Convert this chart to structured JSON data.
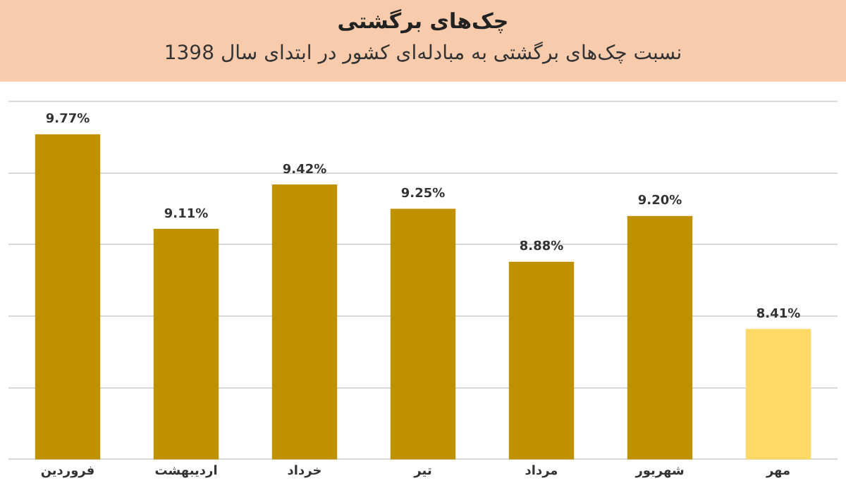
{
  "chart_data": {
    "type": "bar",
    "title": "چک‌های برگشتی",
    "subtitle": "نسبت چک‌های برگشتی به مبادله‌ای کشور در ابتدای سال 1398",
    "categories": [
      "فروردین",
      "اردیبهشت",
      "خرداد",
      "تیر",
      "مرداد",
      "شهریور",
      "مهر"
    ],
    "values": [
      9.77,
      9.11,
      9.42,
      9.25,
      8.88,
      9.2,
      8.41
    ],
    "colors": [
      "#bf9000",
      "#bf9000",
      "#bf9000",
      "#bf9000",
      "#bf9000",
      "#bf9000",
      "#ffd966"
    ],
    "value_labels": [
      "9.77%",
      "9.11%",
      "9.42%",
      "9.25%",
      "8.88%",
      "9.20%",
      "8.41%"
    ],
    "ylim": [
      7.5,
      10
    ],
    "yticks": [
      {
        "value": 7.5,
        "label": null
      },
      {
        "value": 8,
        "label": null
      },
      {
        "value": 8.5,
        "label": null
      },
      {
        "value": 9,
        "label": null
      },
      {
        "value": 9.5,
        "label": null
      },
      {
        "value": 10,
        "label": null
      }
    ],
    "grid": "y",
    "tick_labels": "x",
    "legend": false
  }
}
